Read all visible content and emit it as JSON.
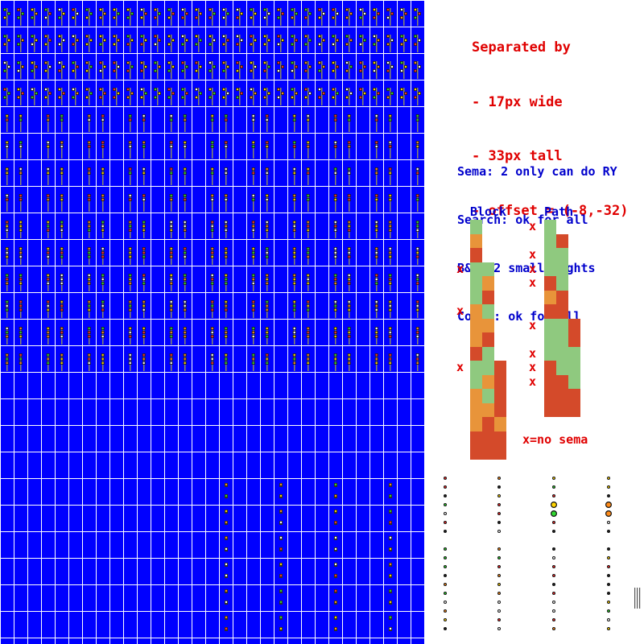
{
  "notes": {
    "separation": [
      "Separated by",
      "- 17px wide",
      "- 33px tall",
      "- offset = (-8,-32)"
    ],
    "aspects": [
      "Sema: 2 only can do RY",
      "Search: ok for all",
      "B&O: 2 small lights",
      "Color: ok for all"
    ]
  },
  "columns": {
    "block": {
      "title": "Block",
      "x_rows": [
        3,
        6,
        10
      ],
      "cells": [
        [
          "g",
          "",
          ""
        ],
        [
          "o",
          "",
          ""
        ],
        [
          "r",
          "",
          ""
        ],
        [
          "g",
          "g",
          ""
        ],
        [
          "g",
          "o",
          ""
        ],
        [
          "g",
          "r",
          ""
        ],
        [
          "o",
          "g",
          ""
        ],
        [
          "o",
          "o",
          ""
        ],
        [
          "o",
          "r",
          ""
        ],
        [
          "r",
          "g",
          ""
        ],
        [
          "g",
          "g",
          "r"
        ],
        [
          "g",
          "o",
          "r"
        ],
        [
          "o",
          "g",
          "r"
        ],
        [
          "o",
          "o",
          "r"
        ],
        [
          "o",
          "r",
          "o"
        ],
        [
          "r",
          "r",
          "r"
        ],
        [
          "r",
          "r",
          "r"
        ]
      ]
    },
    "path": {
      "title": "Path",
      "x_rows": [
        0,
        2,
        3,
        4,
        7,
        9,
        10,
        11
      ],
      "cells": [
        [
          "g",
          "",
          ""
        ],
        [
          "g",
          "r",
          ""
        ],
        [
          "g",
          "g",
          ""
        ],
        [
          "g",
          "g",
          ""
        ],
        [
          "r",
          "g",
          ""
        ],
        [
          "o",
          "r",
          ""
        ],
        [
          "r",
          "r",
          ""
        ],
        [
          "g",
          "g",
          "r"
        ],
        [
          "g",
          "g",
          "r"
        ],
        [
          "g",
          "g",
          "g"
        ],
        [
          "r",
          "g",
          "g"
        ],
        [
          "r",
          "r",
          "g"
        ],
        [
          "r",
          "r",
          "r"
        ],
        [
          "r",
          "r",
          "r"
        ]
      ]
    }
  },
  "legend": "x=no sema",
  "x_mark": "x",
  "colors": {
    "sheet_background": "#0000ff",
    "grid_lines": "#ffffff",
    "note_red": "#e00000",
    "note_blue": "#0000cc",
    "cell_green": "#8fc97f",
    "cell_orange": "#e8943a",
    "cell_red": "#d44a2a"
  }
}
